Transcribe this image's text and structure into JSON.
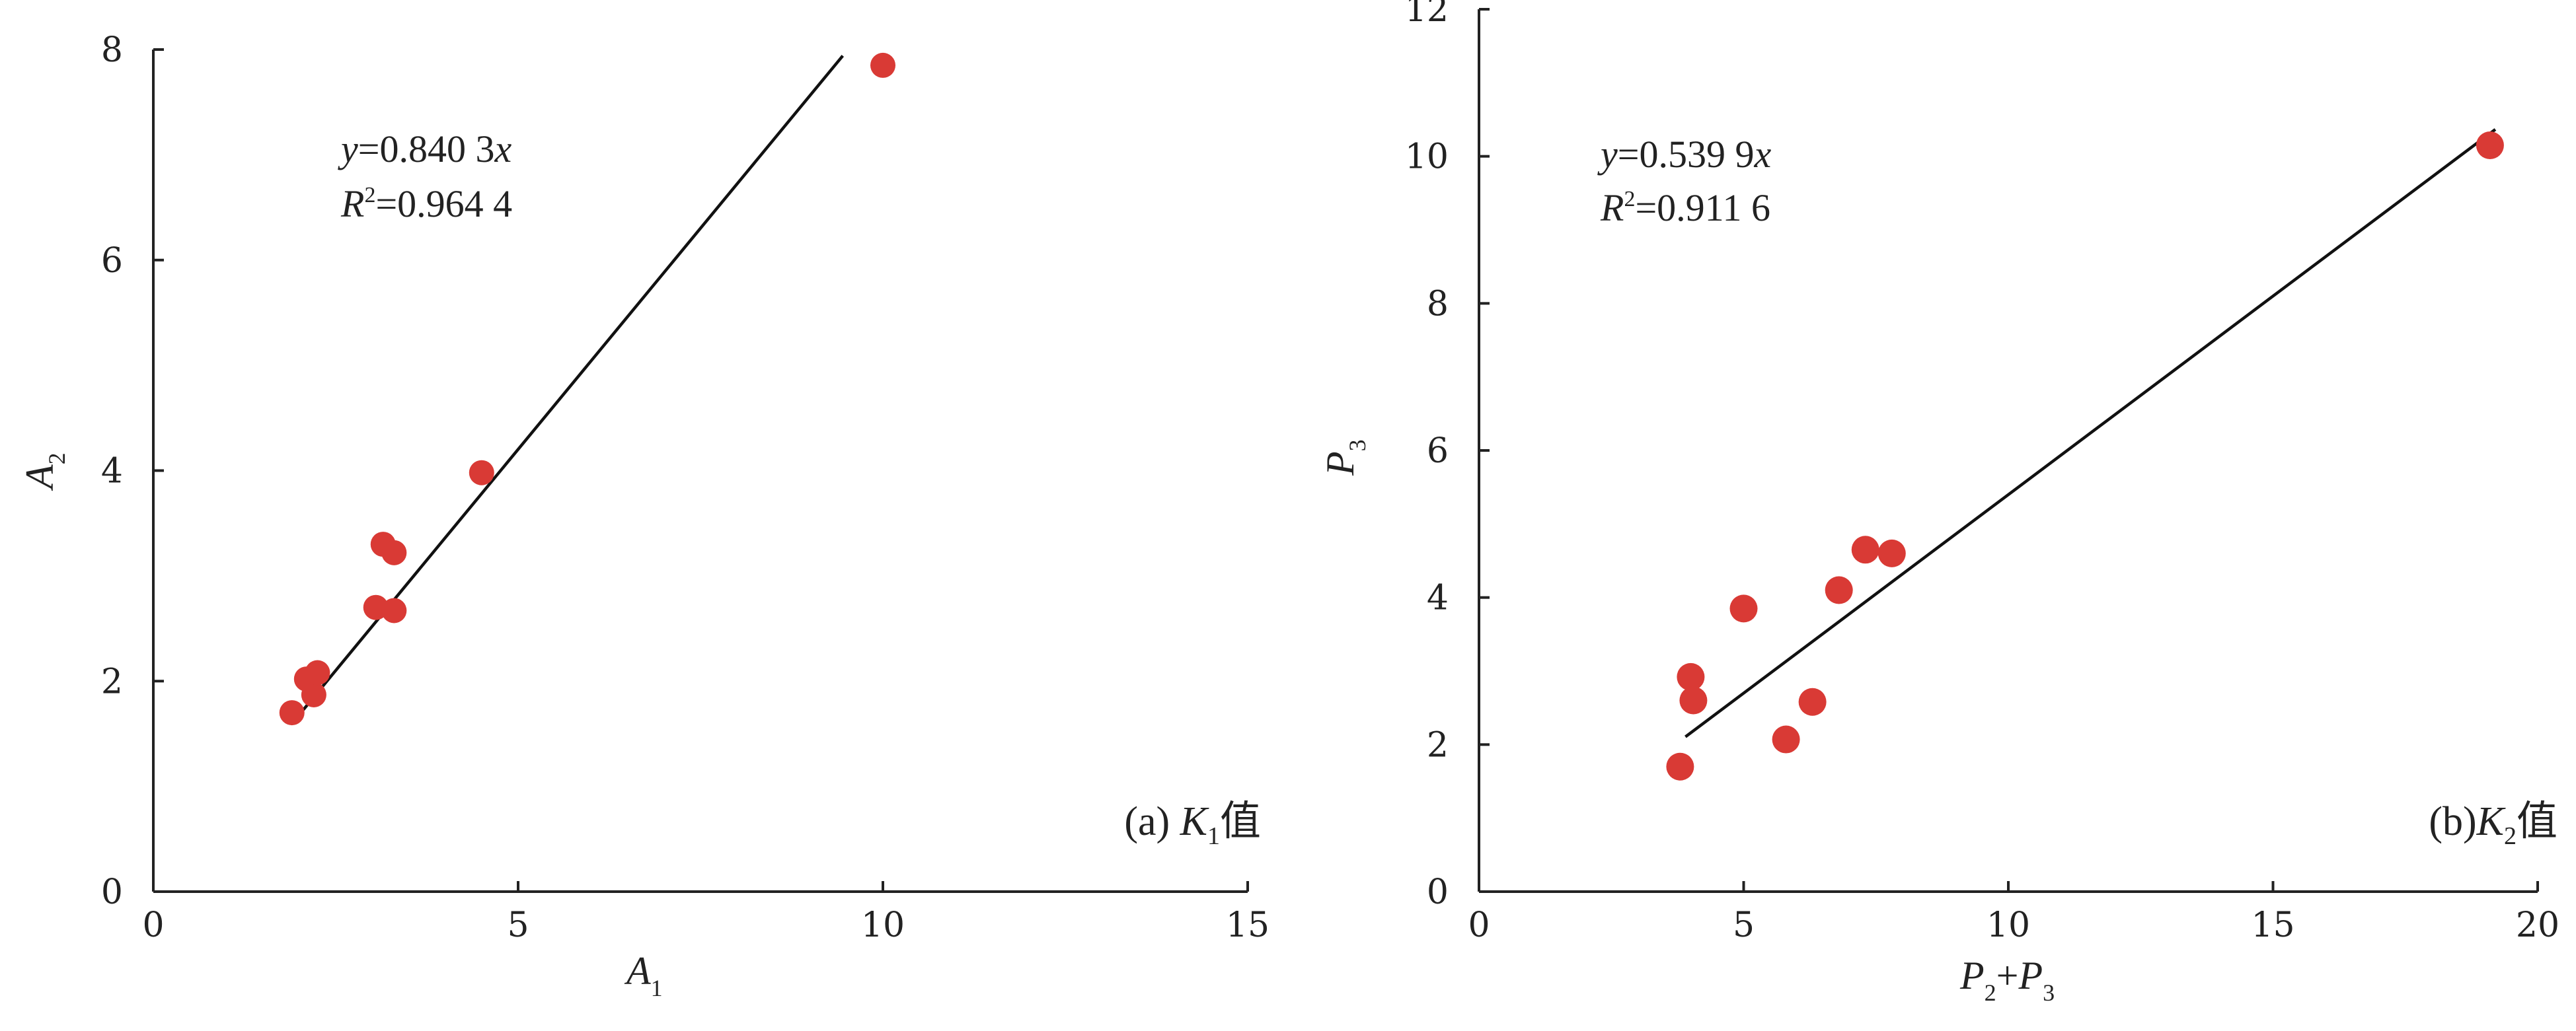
{
  "colors": {
    "point": "#d93a35",
    "axis": "#222222",
    "line": "#111111"
  },
  "chart_data": [
    {
      "type": "scatter",
      "panel_label": {
        "prefix": "(a) ",
        "main": "K",
        "sub": "1",
        "suffix": "值"
      },
      "xlabel": {
        "main": "A",
        "sub": "1"
      },
      "ylabel": {
        "main": "A",
        "sub": "2"
      },
      "xlim": [
        0,
        15
      ],
      "ylim": [
        0,
        8
      ],
      "xticks": [
        0,
        5,
        10,
        15
      ],
      "yticks": [
        0,
        2,
        4,
        6,
        8
      ],
      "xtick_labels": [
        "0",
        "5",
        "10",
        "15"
      ],
      "ytick_labels": [
        "0",
        "2",
        "4",
        "6",
        "8"
      ],
      "equation": {
        "y_var": "y",
        "eq_mid": "=0.840 3",
        "x_var": "x",
        "r_var": "R",
        "r_sup": "2",
        "r_val": "=0.964 4"
      },
      "fit": {
        "slope": 0.8403,
        "x_range": [
          1.9,
          9.45
        ]
      },
      "points": [
        {
          "x": 1.9,
          "y": 1.7
        },
        {
          "x": 2.1,
          "y": 2.02
        },
        {
          "x": 2.2,
          "y": 1.87
        },
        {
          "x": 2.25,
          "y": 2.08
        },
        {
          "x": 3.05,
          "y": 2.7
        },
        {
          "x": 3.15,
          "y": 3.3
        },
        {
          "x": 3.3,
          "y": 3.22
        },
        {
          "x": 3.3,
          "y": 2.67
        },
        {
          "x": 4.5,
          "y": 3.98
        },
        {
          "x": 10.0,
          "y": 7.85
        }
      ]
    },
    {
      "type": "scatter",
      "panel_label": {
        "prefix": "(b)",
        "main": "K",
        "sub": "2",
        "suffix": "值"
      },
      "xlabel": {
        "main": "P",
        "sub": "2",
        "plus": "+",
        "main2": "P",
        "sub2": "3"
      },
      "ylabel": {
        "main": "P",
        "sub": "3"
      },
      "xlim": [
        0,
        20
      ],
      "ylim": [
        0,
        12
      ],
      "xticks": [
        0,
        5,
        10,
        15,
        20
      ],
      "yticks": [
        0,
        2,
        4,
        6,
        8,
        10,
        12
      ],
      "xtick_labels": [
        "0",
        "5",
        "10",
        "15",
        "20"
      ],
      "ytick_labels": [
        "0",
        "2",
        "4",
        "6",
        "8",
        "10",
        "12"
      ],
      "equation": {
        "y_var": "y",
        "eq_mid": "=0.539 9",
        "x_var": "x",
        "r_var": "R",
        "r_sup": "2",
        "r_val": "=0.911 6"
      },
      "fit": {
        "slope": 0.5399,
        "x_range": [
          3.9,
          19.2
        ]
      },
      "points": [
        {
          "x": 3.8,
          "y": 1.7
        },
        {
          "x": 4.0,
          "y": 2.92
        },
        {
          "x": 4.05,
          "y": 2.6
        },
        {
          "x": 5.0,
          "y": 3.85
        },
        {
          "x": 5.8,
          "y": 2.07
        },
        {
          "x": 6.3,
          "y": 2.58
        },
        {
          "x": 6.8,
          "y": 4.1
        },
        {
          "x": 7.3,
          "y": 4.65
        },
        {
          "x": 7.8,
          "y": 4.6
        },
        {
          "x": 19.1,
          "y": 10.15
        }
      ]
    }
  ]
}
